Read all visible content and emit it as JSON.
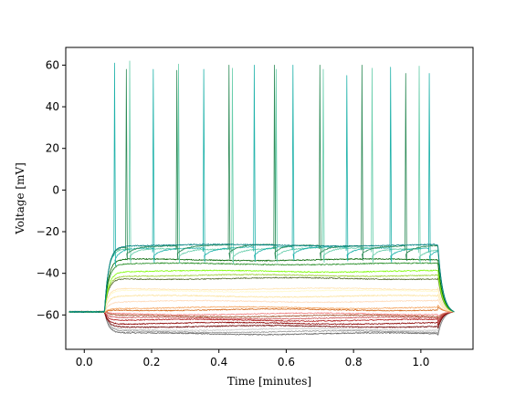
{
  "chart_data": {
    "type": "line",
    "title": "",
    "xlabel": "Time [minutes]",
    "ylabel": "Voltage [mV]",
    "xlim": [
      -0.055,
      1.155
    ],
    "ylim": [
      -76.5,
      68.5
    ],
    "xticks": [
      0.0,
      0.2,
      0.4,
      0.6,
      0.8,
      1.0
    ],
    "xtick_labels": [
      "0.0",
      "0.2",
      "0.4",
      "0.6",
      "0.8",
      "1.0"
    ],
    "yticks": [
      -60,
      -40,
      -20,
      0,
      20,
      40,
      60
    ],
    "ytick_labels": [
      "−60",
      "−40",
      "−20",
      "0",
      "20",
      "40",
      "60"
    ],
    "grid": false,
    "legend": "none",
    "stim_start": 0.06,
    "stim_end": 1.05,
    "trace_end": 1.1,
    "rest_level": -58.5,
    "end_level": -58.5,
    "series": [
      {
        "color": "#5f5f5f",
        "level": -69,
        "spikes": []
      },
      {
        "color": "#9a9a9a",
        "level": -68,
        "spikes": []
      },
      {
        "color": "#c8c8c8",
        "level": -67,
        "spikes": []
      },
      {
        "color": "#6b0000",
        "level": -65.5,
        "spikes": []
      },
      {
        "color": "#8b0000",
        "level": -64,
        "spikes": []
      },
      {
        "color": "#b22222",
        "level": -62.5,
        "spikes": []
      },
      {
        "color": "#cd5c5c",
        "level": -61.5,
        "spikes": []
      },
      {
        "color": "#a0522d",
        "level": -60.5,
        "spikes": []
      },
      {
        "color": "#f08080",
        "level": -59.5,
        "spikes": []
      },
      {
        "color": "#d2691e",
        "level": -57.5,
        "spikes": []
      },
      {
        "color": "#f4a460",
        "level": -56.5,
        "spikes": []
      },
      {
        "color": "#ffdab9",
        "level": -53.5,
        "spikes": []
      },
      {
        "color": "#fbe3a0",
        "level": -51,
        "spikes": []
      },
      {
        "color": "#fffacd",
        "level": -48.5,
        "spikes": []
      },
      {
        "color": "#ffe4b5",
        "level": -47.5,
        "spikes": []
      },
      {
        "color": "#556b2f",
        "level": -42.5,
        "spikes": []
      },
      {
        "color": "#9acd32",
        "level": -41,
        "spikes": []
      },
      {
        "color": "#7cfc00",
        "level": -39,
        "spikes": []
      },
      {
        "color": "#228b22",
        "level": -35.5,
        "spikes": []
      },
      {
        "color": "#006400",
        "level": -33.5,
        "spikes": []
      },
      {
        "color": "#66cdaa",
        "level": -28.5,
        "spikes": [
          0.135,
          0.28,
          0.44,
          0.57,
          0.71,
          0.855,
          0.995
        ]
      },
      {
        "color": "#20b2aa",
        "level": -28,
        "spikes": [
          0.09,
          0.205,
          0.355,
          0.505,
          0.62,
          0.78,
          0.91,
          1.025
        ]
      },
      {
        "color": "#2e8b57",
        "level": -27,
        "spikes": [
          0.125,
          0.275,
          0.43,
          0.565,
          0.7,
          0.825,
          0.955
        ]
      },
      {
        "color": "#008080",
        "level": -26.5,
        "spikes": []
      }
    ],
    "spike_peaks": {
      "0.09": 61,
      "0.125": 58,
      "0.135": 62,
      "0.205": 58,
      "0.275": 57.5,
      "0.28": 60.5,
      "0.355": 58,
      "0.43": 60,
      "0.44": 58.5,
      "0.505": 60,
      "0.565": 60,
      "0.57": 58,
      "0.62": 60,
      "0.7": 60,
      "0.71": 58,
      "0.78": 55,
      "0.825": 60,
      "0.855": 58.5,
      "0.91": 59,
      "0.955": 56,
      "0.995": 59.5,
      "1.025": 56
    }
  }
}
